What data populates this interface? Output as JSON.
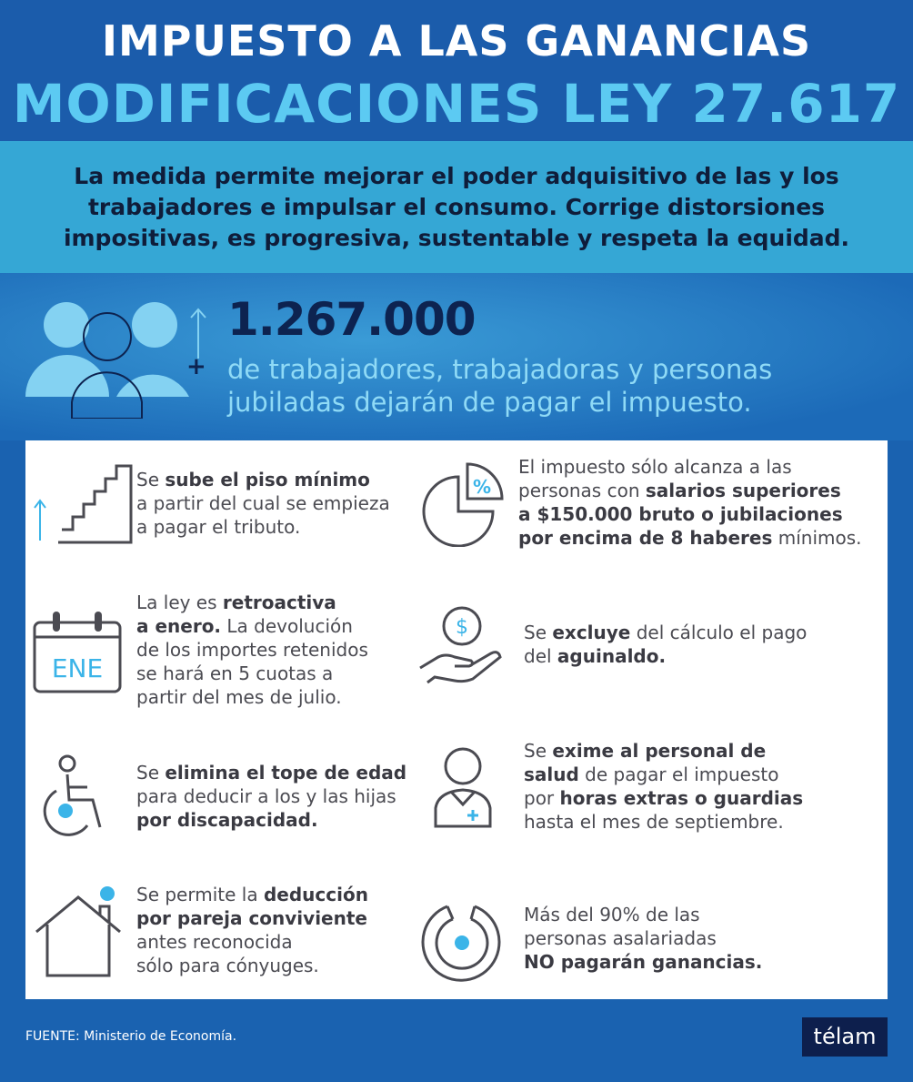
{
  "header": {
    "title": "IMPUESTO A LAS GANANCIAS",
    "subtitle": "MODIFICACIONES  LEY 27.617"
  },
  "intro": {
    "line1": "La medida permite mejorar el poder adquisitivo de las y los",
    "line2": "trabajadores e impulsar el consumo. Corrige distorsiones",
    "line3": "impositivas, es progresiva, sustentable y respeta la equidad."
  },
  "highlight": {
    "number": "1.267.000",
    "plus": "+",
    "line1": "de trabajadores, trabajadoras y personas",
    "line2": "jubiladas dejarán de pagar el impuesto."
  },
  "items": [
    {
      "icon": "stairs-icon",
      "s": [
        "Se ",
        "sube el piso mínimo",
        "a partir del cual se empieza",
        "a pagar el tributo."
      ]
    },
    {
      "icon": "pie-percent-icon",
      "badge": "%",
      "s": [
        "El impuesto sólo alcanza a las",
        "personas con ",
        "salarios superiores",
        "a $150.000 bruto o jubilaciones",
        "por encima de 8 haberes",
        " mínimos."
      ]
    },
    {
      "icon": "calendar-icon",
      "badge": "ENE",
      "s": [
        "La ley es ",
        "retroactiva",
        "a enero.",
        " La devolución",
        "de los importes retenidos",
        "se hará en 5 cuotas a",
        "partir del mes de julio."
      ]
    },
    {
      "icon": "hand-coin-icon",
      "badge": "$",
      "s": [
        "Se ",
        "excluye",
        " del cálculo el pago",
        "del ",
        "aguinaldo."
      ]
    },
    {
      "icon": "wheelchair-icon",
      "s": [
        "Se ",
        "elimina el tope de edad",
        "para deducir a los y las hijas",
        "por discapacidad."
      ]
    },
    {
      "icon": "health-worker-icon",
      "s": [
        "Se ",
        "exime al personal de",
        "salud",
        " de pagar el impuesto",
        "por ",
        "horas extras o guardias",
        "hasta el mes de septiembre."
      ]
    },
    {
      "icon": "house-icon",
      "s": [
        "Se permite la ",
        "deducción",
        "por pareja conviviente",
        "antes reconocida",
        "sólo para cónyuges."
      ]
    },
    {
      "icon": "ring-chart-icon",
      "s": [
        "Más del 90% de las",
        "personas asalariadas",
        "NO pagarán ganancias."
      ]
    }
  ],
  "footer": {
    "source": "FUENTE: Ministerio de Economía.",
    "logo": "télam"
  },
  "colors": {
    "dark_blue": "#1b5cab",
    "light_blue": "#5ccaf2",
    "band": "#35a7d5",
    "navy": "#0d2350",
    "accent": "#3bb4e8"
  }
}
